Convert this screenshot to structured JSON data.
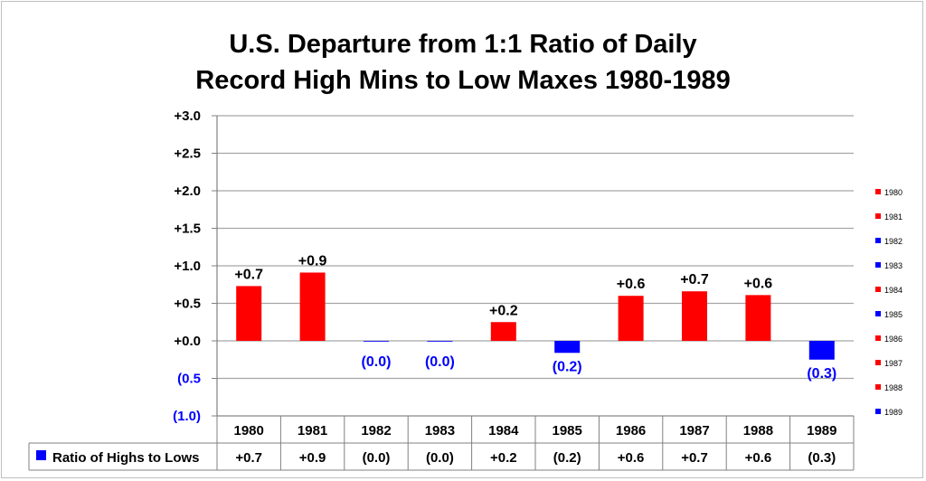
{
  "chart_data": {
    "type": "bar",
    "title_lines": [
      "U.S. Departure from 1:1 Ratio of Daily",
      "Record High Mins to Low Maxes 1980-1989"
    ],
    "categories": [
      "1980",
      "1981",
      "1982",
      "1983",
      "1984",
      "1985",
      "1986",
      "1987",
      "1988",
      "1989"
    ],
    "series": [
      {
        "name": "Ratio of Highs to Lows",
        "values": [
          0.73,
          0.91,
          -0.01,
          -0.01,
          0.25,
          -0.16,
          0.6,
          0.66,
          0.61,
          -0.25
        ],
        "labels": [
          "+0.7",
          "+0.9",
          "(0.0)",
          "(0.0)",
          "+0.2",
          "(0.2)",
          "+0.6",
          "+0.7",
          "+0.6",
          "(0.3)"
        ]
      }
    ],
    "ylim": [
      -1.0,
      3.0
    ],
    "yticks": [
      3.0,
      2.5,
      2.0,
      1.5,
      1.0,
      0.5,
      0.0,
      -0.5,
      -1.0
    ],
    "ytick_labels": [
      "+3.0",
      "+2.5",
      "+2.0",
      "+1.5",
      "+1.0",
      "+0.5",
      "+0.0",
      "(0.5",
      "(1.0)"
    ],
    "positive_color": "#ff0000",
    "negative_color": "#0000ff",
    "legend_entries": [
      "1980",
      "1981",
      "1982",
      "1983",
      "1984",
      "1985",
      "1986",
      "1987",
      "1988",
      "1989"
    ],
    "legend_placement": "right",
    "grid": true,
    "data_table": true
  }
}
